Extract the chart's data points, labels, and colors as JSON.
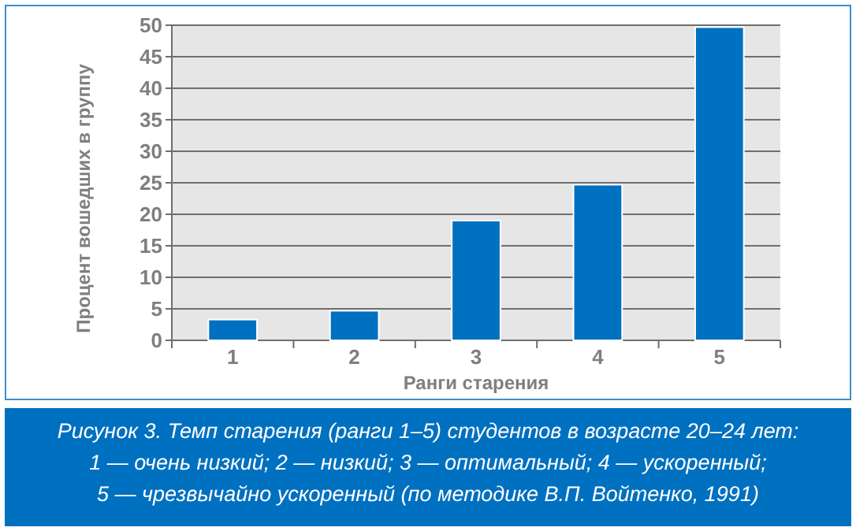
{
  "chart_data": {
    "type": "bar",
    "title": "Рисунок 3.  Темп старения (ранги 1–5) студентов в возрасте 20–24 лет:\n1 — очень низкий; 2 — низкий; 3 — оптимальный; 4 — ускоренный;\n5 — чрезвычайно ускоренный (по методике В.П. Войтенко, 1991)",
    "xlabel": "Ранги старения",
    "ylabel": "Процент вошедших в группу",
    "categories": [
      "1",
      "2",
      "3",
      "4",
      "5"
    ],
    "values": [
      3.3,
      4.7,
      19,
      24.7,
      49.7
    ],
    "color": "#0070c0",
    "ylim": [
      0,
      50
    ],
    "yticks": [
      0,
      5,
      10,
      15,
      20,
      25,
      30,
      35,
      40,
      45,
      50
    ],
    "grid": "y"
  }
}
